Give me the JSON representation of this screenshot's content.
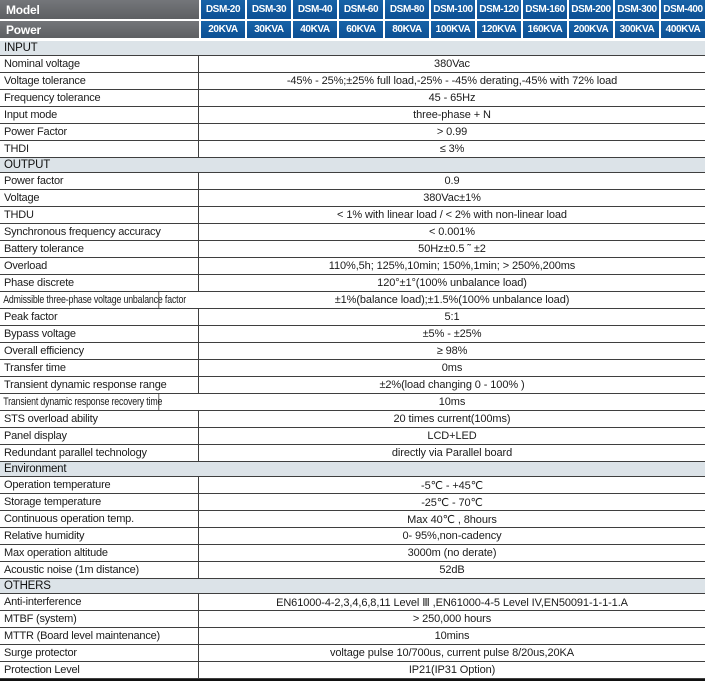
{
  "colors": {
    "header_blue": "#0d5094",
    "header_blue_light": "#1763a8",
    "header_gray": "#5d5f62",
    "header_gray_light": "#74767a",
    "section_bg": "#dce3e8",
    "border": "#3f3f3f",
    "text": "#1b1b1b"
  },
  "header": {
    "model_label": "Model",
    "power_label": "Power",
    "models": [
      "DSM-20",
      "DSM-30",
      "DSM-40",
      "DSM-60",
      "DSM-80",
      "DSM-100",
      "DSM-120",
      "DSM-160",
      "DSM-200",
      "DSM-300",
      "DSM-400"
    ],
    "powers": [
      "20KVA",
      "30KVA",
      "40KVA",
      "60KVA",
      "80KVA",
      "100KVA",
      "120KVA",
      "160KVA",
      "200KVA",
      "300KVA",
      "400KVA"
    ]
  },
  "sections": [
    {
      "title": "INPUT",
      "rows": [
        {
          "label": "Nominal voltage",
          "value": "380Vac"
        },
        {
          "label": "Voltage tolerance",
          "value": "-45% - 25%;±25% full load,-25% - -45% derating,-45% with 72% load"
        },
        {
          "label": "Frequency tolerance",
          "value": "45 - 65Hz"
        },
        {
          "label": "Input mode",
          "value": "three-phase + N"
        },
        {
          "label": "Power Factor",
          "value": "> 0.99"
        },
        {
          "label": "THDI",
          "value": "≤  3%"
        }
      ]
    },
    {
      "title": "OUTPUT",
      "rows": [
        {
          "label": "Power factor",
          "value": "0.9"
        },
        {
          "label": "Voltage",
          "value": "380Vac±1%"
        },
        {
          "label": "THDU",
          "value": "< 1% with linear load /  < 2% with non-linear load"
        },
        {
          "label": "Synchronous frequency accuracy",
          "value": "< 0.001%"
        },
        {
          "label": "Battery tolerance",
          "value": "50Hz±0.5 ˜ ±2"
        },
        {
          "label": "Overload",
          "value": "110%,5h; 125%,10min; 150%,1min; > 250%,200ms"
        },
        {
          "label": "Phase discrete",
          "value": "120°±1°(100% unbalance load)"
        },
        {
          "label": "Admissible three-phase voltage unbalance factor",
          "value": "±1%(balance load);±1.5%(100% unbalance load)"
        },
        {
          "label": "Peak factor",
          "value": "5:1"
        },
        {
          "label": "Bypass voltage",
          "value": "±5% - ±25%"
        },
        {
          "label": "Overall efficiency",
          "value": "≥  98%"
        },
        {
          "label": "Transfer time",
          "value": "0ms"
        },
        {
          "label": "Transient dynamic response range",
          "value": "±2%(load changing 0 - 100% )"
        },
        {
          "label": "Transient dynamic response recovery time",
          "value": "10ms"
        },
        {
          "label": "STS overload ability",
          "value": "20 times current(100ms)"
        },
        {
          "label": "Panel display",
          "value": "LCD+LED"
        },
        {
          "label": "Redundant parallel technology",
          "value": "directly via Parallel board"
        }
      ]
    },
    {
      "title": "Environment",
      "rows": [
        {
          "label": "Operation temperature",
          "value": "-5℃ - +45℃"
        },
        {
          "label": "Storage temperature",
          "value": "-25℃ - 70℃"
        },
        {
          "label": "Continuous operation temp.",
          "value": "Max 40℃ , 8hours"
        },
        {
          "label": "Relative humidity",
          "value": "0- 95%,non-cadency"
        },
        {
          "label": "Max operation altitude",
          "value": "3000m (no derate)"
        },
        {
          "label": "Acoustic noise (1m distance)",
          "value": "52dB"
        }
      ]
    },
    {
      "title": "OTHERS",
      "rows": [
        {
          "label": "Anti-interference",
          "value": "EN61000-4-2,3,4,6,8,11 Level Ⅲ ,EN61000-4-5 Level IV,EN50091-1-1-1.A"
        },
        {
          "label": "MTBF (system)",
          "value": "> 250,000 hours"
        },
        {
          "label": "MTTR (Board level maintenance)",
          "value": "10mins"
        },
        {
          "label": "Surge protector",
          "value": "voltage pulse 10/700us,  current pulse 8/20us,20KA"
        },
        {
          "label": "Protection  Level",
          "value": "IP21(IP31 Option)"
        }
      ]
    }
  ]
}
